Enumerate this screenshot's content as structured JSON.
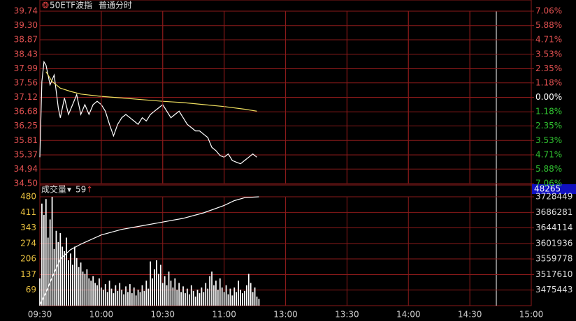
{
  "instrument": "50ETF波指",
  "mode": "普通分时",
  "chart_data": [
    {
      "type": "line",
      "xlim": [
        0,
        240
      ],
      "ylim": [
        34.5,
        39.74
      ],
      "yticks": [
        {
          "value": 39.74,
          "label": "39.74"
        },
        {
          "value": 39.3,
          "label": "39.30"
        },
        38.87,
        38.43,
        37.99,
        37.56,
        37.12,
        36.68,
        36.25,
        35.81,
        35.37,
        34.94,
        {
          "value": 34.5,
          "label": "34.50"
        }
      ],
      "y2lim": [
        -7.06,
        7.06
      ],
      "y2ticks": [
        {
          "value": 7.06,
          "label": "7.06%"
        },
        {
          "value": 5.88,
          "label": "5.88%"
        },
        {
          "value": 4.71,
          "label": "4.71%"
        },
        {
          "value": 3.53,
          "label": "3.53%"
        },
        {
          "value": 2.35,
          "label": "2.35%"
        },
        {
          "value": 1.18,
          "label": "1.18%"
        },
        {
          "value": 0,
          "label": "0.00%"
        },
        {
          "value": -1.18,
          "label": "1.18%"
        },
        {
          "value": -2.35,
          "label": "2.35%"
        },
        {
          "value": -3.53,
          "label": "3.53%"
        },
        {
          "value": -4.71,
          "label": "4.71%"
        },
        {
          "value": -5.88,
          "label": "5.88%"
        },
        {
          "value": -7.06,
          "label": "7.06%"
        }
      ],
      "grid": true,
      "series": [
        {
          "color": "#ffffff",
          "x": [
            0,
            1,
            2,
            3,
            5,
            7,
            9,
            10,
            12,
            14,
            16,
            18,
            20,
            22,
            24,
            26,
            28,
            30,
            32,
            34,
            36,
            38,
            40,
            42,
            44,
            46,
            48,
            50,
            52,
            54,
            56,
            58,
            60,
            62,
            64,
            66,
            68,
            70,
            72,
            74,
            76,
            78,
            80,
            82,
            84,
            86,
            88,
            90,
            92,
            94,
            96,
            98,
            100,
            102,
            104,
            106
          ],
          "values": [
            35.3,
            37.6,
            38.2,
            38.1,
            37.5,
            37.8,
            36.8,
            36.5,
            37.1,
            36.6,
            36.9,
            37.2,
            36.6,
            36.9,
            36.6,
            36.9,
            37.0,
            36.9,
            36.7,
            36.3,
            35.95,
            36.3,
            36.5,
            36.6,
            36.5,
            36.4,
            36.3,
            36.5,
            36.4,
            36.6,
            36.7,
            36.8,
            36.9,
            36.7,
            36.5,
            36.6,
            36.7,
            36.5,
            36.3,
            36.2,
            36.1,
            36.1,
            36.0,
            35.9,
            35.6,
            35.5,
            35.35,
            35.3,
            35.4,
            35.2,
            35.15,
            35.1,
            35.2,
            35.3,
            35.4,
            35.3
          ]
        },
        {
          "color": "#f0e060",
          "x": [
            3,
            6,
            10,
            15,
            20,
            30,
            40,
            50,
            60,
            70,
            80,
            90,
            100,
            106
          ],
          "values": [
            37.9,
            37.6,
            37.4,
            37.3,
            37.22,
            37.15,
            37.1,
            37.05,
            37.0,
            36.96,
            36.9,
            36.84,
            36.76,
            36.7
          ]
        }
      ]
    },
    {
      "type": "bar",
      "title": "成交量",
      "period": "59",
      "cursor_value": "48265",
      "xlim": [
        0,
        240
      ],
      "xticks": [
        {
          "value": 0,
          "label": "09:30"
        },
        {
          "value": 30,
          "label": "10:00"
        },
        {
          "value": 60,
          "label": "10:30"
        },
        {
          "value": 90,
          "label": "11:00"
        },
        {
          "value": 120,
          "label": "13:00"
        },
        {
          "value": 150,
          "label": "13:30"
        },
        {
          "value": 180,
          "label": "14:00"
        },
        {
          "value": 210,
          "label": "14:30"
        },
        {
          "value": 240,
          "label": "15:00"
        }
      ],
      "ylim": [
        0,
        480
      ],
      "yticks": [
        480,
        411,
        343,
        274,
        206,
        137,
        69
      ],
      "y2lim": [
        3433275,
        3728449
      ],
      "y2ticks": [
        3728449,
        3686281,
        3644114,
        3601936,
        3559778,
        3517610,
        3475443
      ],
      "grid": true,
      "color": "#ffffff",
      "x": [
        0,
        1,
        2,
        3,
        4,
        5,
        6,
        7,
        8,
        9,
        10,
        11,
        12,
        13,
        14,
        15,
        16,
        17,
        18,
        19,
        20,
        21,
        22,
        23,
        24,
        25,
        26,
        27,
        28,
        29,
        30,
        31,
        32,
        33,
        34,
        35,
        36,
        37,
        38,
        39,
        40,
        41,
        42,
        43,
        44,
        45,
        46,
        47,
        48,
        49,
        50,
        51,
        52,
        53,
        54,
        55,
        56,
        57,
        58,
        59,
        60,
        61,
        62,
        63,
        64,
        65,
        66,
        67,
        68,
        69,
        70,
        71,
        72,
        73,
        74,
        75,
        76,
        77,
        78,
        79,
        80,
        81,
        82,
        83,
        84,
        85,
        86,
        87,
        88,
        89,
        90,
        91,
        92,
        93,
        94,
        95,
        96,
        97,
        98,
        99,
        100,
        101,
        102,
        103,
        104,
        105,
        106,
        107
      ],
      "values": [
        120,
        450,
        400,
        470,
        300,
        380,
        480,
        250,
        330,
        280,
        320,
        260,
        240,
        300,
        200,
        230,
        180,
        260,
        210,
        170,
        190,
        150,
        140,
        160,
        120,
        110,
        130,
        100,
        90,
        120,
        80,
        70,
        95,
        60,
        110,
        75,
        55,
        90,
        65,
        100,
        70,
        50,
        85,
        60,
        95,
        55,
        80,
        45,
        70,
        60,
        90,
        65,
        110,
        75,
        195,
        120,
        160,
        200,
        140,
        180,
        100,
        130,
        90,
        150,
        110,
        80,
        120,
        70,
        100,
        60,
        85,
        55,
        75,
        50,
        90,
        65,
        40,
        70,
        55,
        80,
        60,
        100,
        75,
        130,
        150,
        90,
        110,
        70,
        120,
        80,
        60,
        90,
        50,
        75,
        45,
        80,
        60,
        110,
        70,
        55,
        65,
        90,
        140,
        100,
        60,
        80,
        40,
        30
      ],
      "series": [
        {
          "color": "#ffffff",
          "axis": "y2",
          "x": [
            0,
            3,
            6,
            10,
            15,
            20,
            30,
            40,
            50,
            60,
            70,
            80,
            90,
            95,
            100,
            107
          ],
          "values": [
            3435000,
            3470000,
            3510000,
            3560000,
            3585000,
            3600000,
            3625000,
            3640000,
            3650000,
            3660000,
            3670000,
            3685000,
            3705000,
            3718000,
            3726000,
            3728449
          ]
        }
      ]
    }
  ]
}
